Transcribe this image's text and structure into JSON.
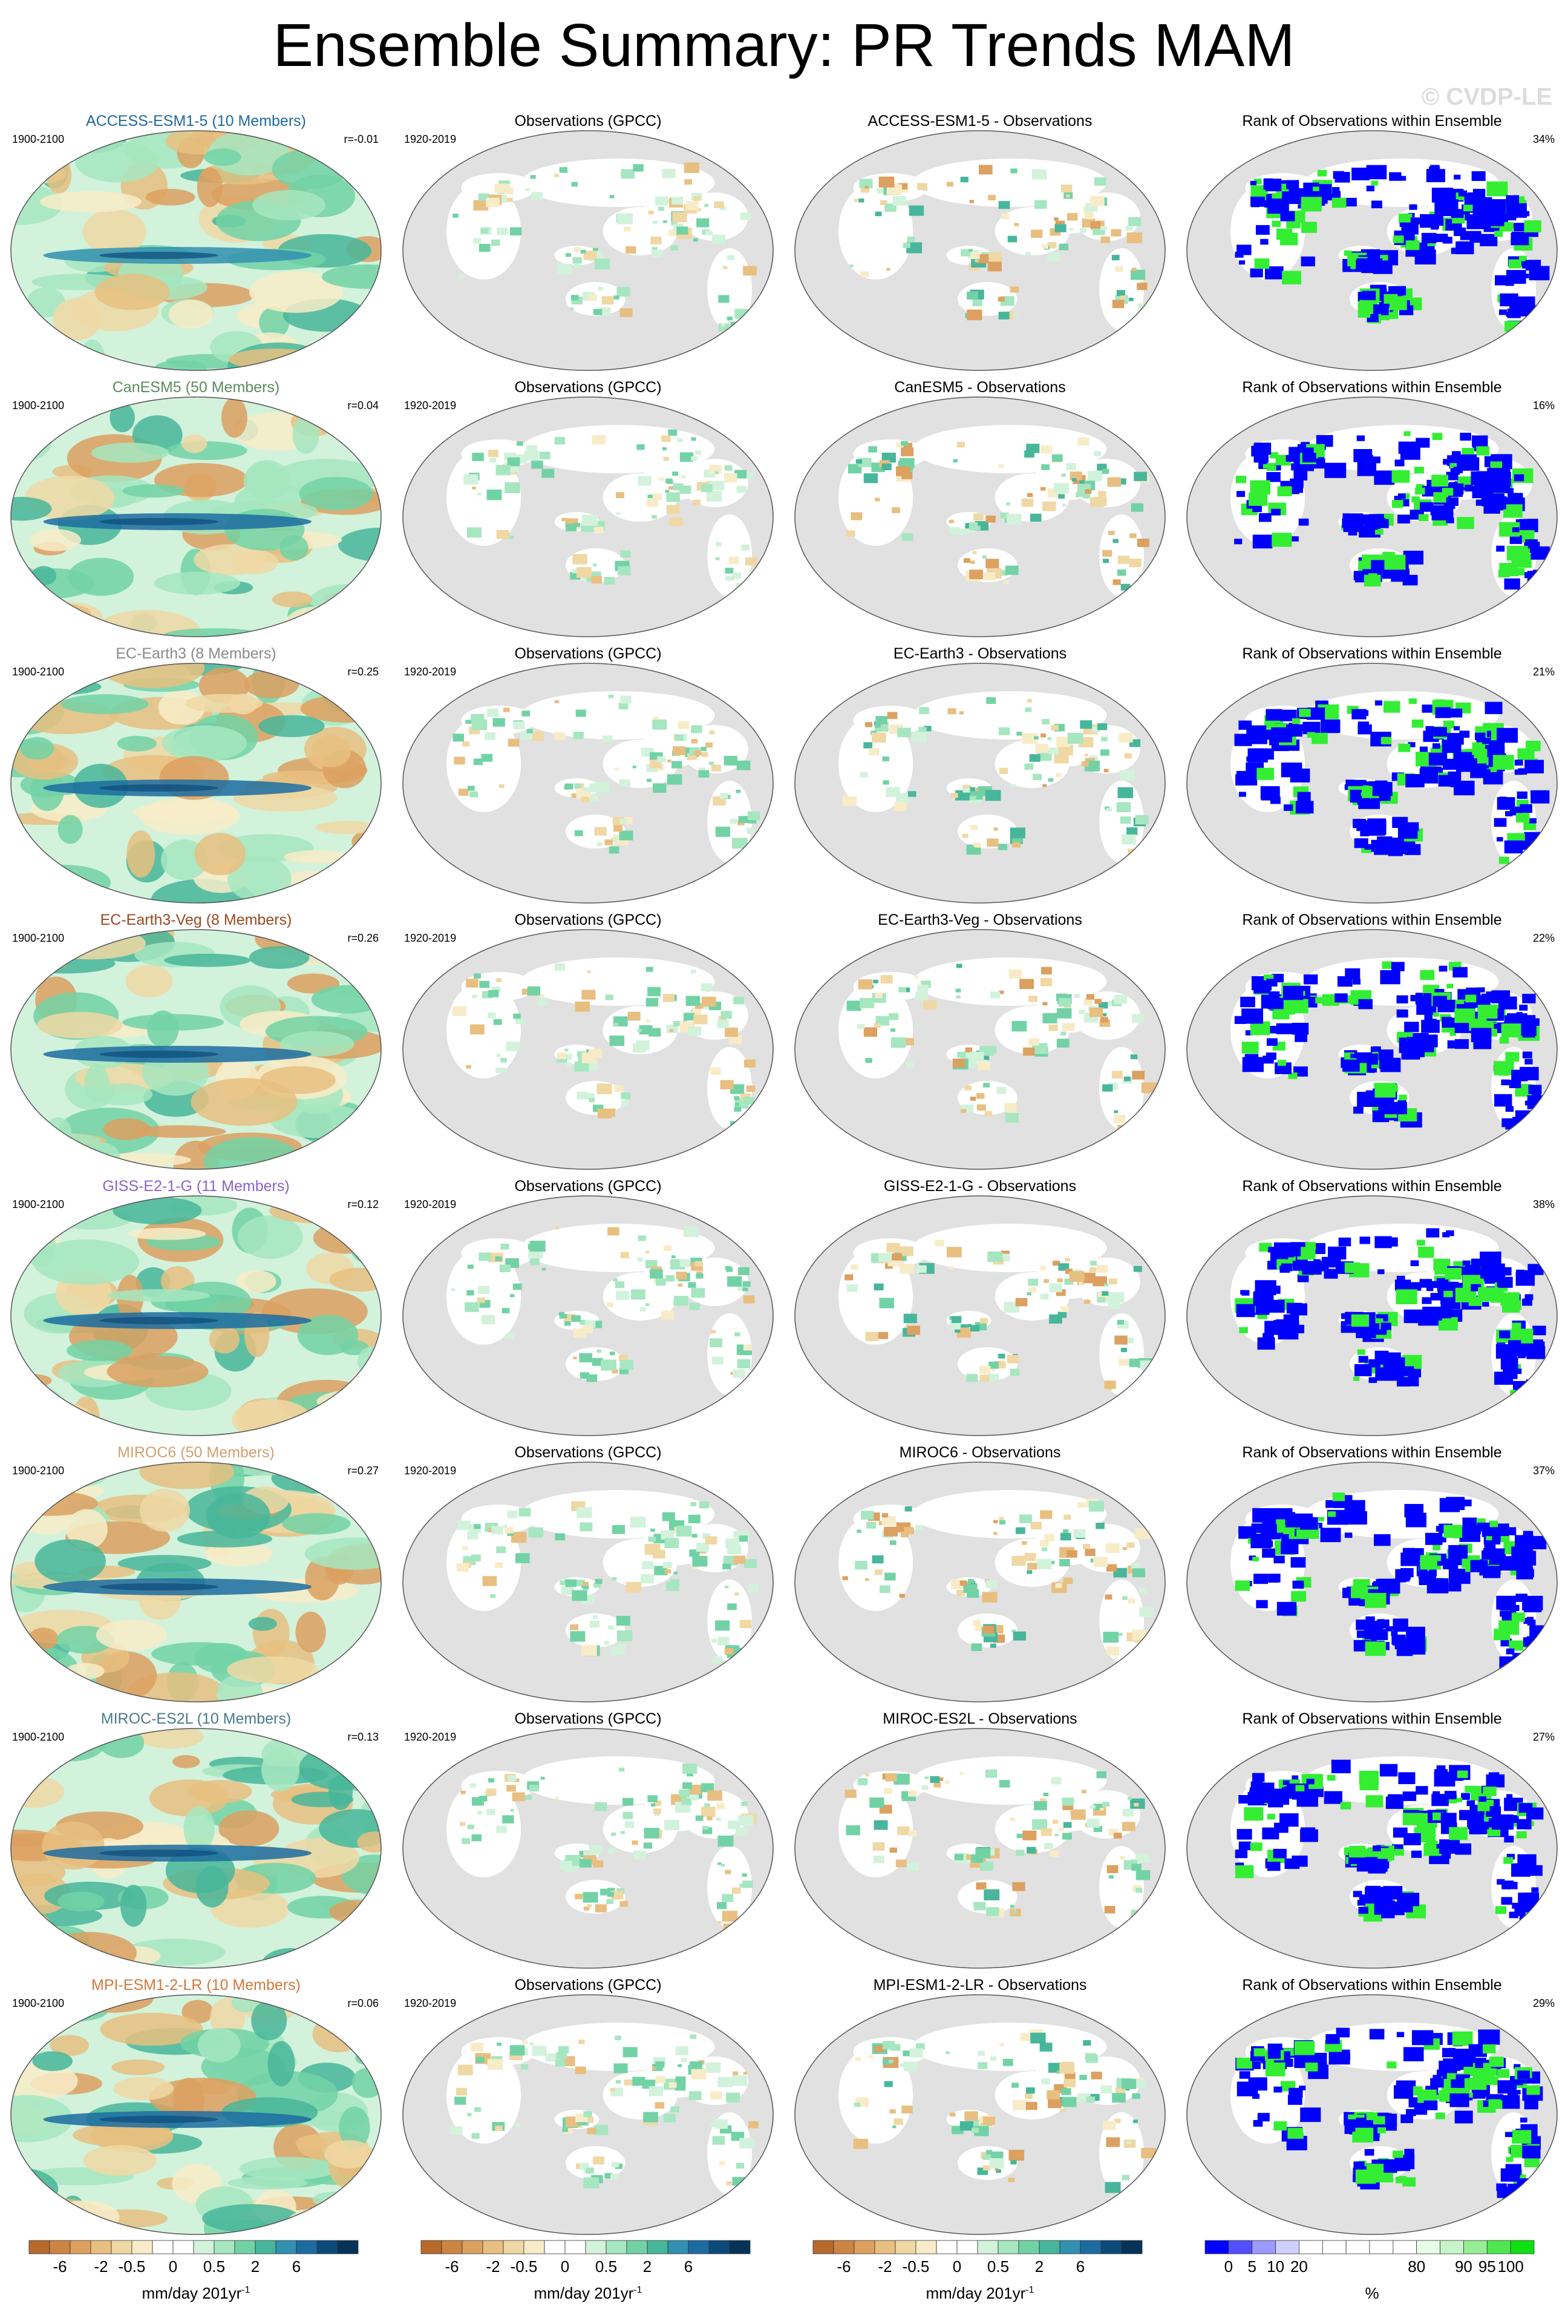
{
  "title": "Ensemble Summary: PR Trends MAM",
  "watermark": "© CVDP-LE",
  "colors": {
    "ocean_gray": "#e1e1e1",
    "land_white": "#ffffff",
    "rank_blue": "#0000ff",
    "rank_green": "#33ee33",
    "model_title_colors": {
      "ACCESS-ESM1-5": "#1f6a9e",
      "CanESM5": "#5d8c5d",
      "EC-Earth3": "#8a8a8a",
      "EC-Earth3-Veg": "#9a4a1e",
      "GISS-E2-1-G": "#8a64c8",
      "MIROC6": "#d4a070",
      "MIROC-ES2L": "#4a7a8a",
      "MPI-ESM1-2-LR": "#d2783c"
    }
  },
  "rows": [
    {
      "model": "ACCESS-ESM1-5",
      "model_title": "ACCESS-ESM1-5 (10 Members)",
      "model_period": "1900-2100",
      "r": "r=-0.01",
      "obs_title": "Observations (GPCC)",
      "obs_period": "1920-2019",
      "diff_title": "ACCESS-ESM1-5 - Observations",
      "rank_title": "Rank of Observations within Ensemble",
      "rank_pct": "34%"
    },
    {
      "model": "CanESM5",
      "model_title": "CanESM5 (50 Members)",
      "model_period": "1900-2100",
      "r": "r=0.04",
      "obs_title": "Observations (GPCC)",
      "obs_period": "1920-2019",
      "diff_title": "CanESM5 - Observations",
      "rank_title": "Rank of Observations within Ensemble",
      "rank_pct": "16%"
    },
    {
      "model": "EC-Earth3",
      "model_title": "EC-Earth3 (8 Members)",
      "model_period": "1900-2100",
      "r": "r=0.25",
      "obs_title": "Observations (GPCC)",
      "obs_period": "1920-2019",
      "diff_title": "EC-Earth3 - Observations",
      "rank_title": "Rank of Observations within Ensemble",
      "rank_pct": "21%"
    },
    {
      "model": "EC-Earth3-Veg",
      "model_title": "EC-Earth3-Veg (8 Members)",
      "model_period": "1900-2100",
      "r": "r=0.26",
      "obs_title": "Observations (GPCC)",
      "obs_period": "1920-2019",
      "diff_title": "EC-Earth3-Veg - Observations",
      "rank_title": "Rank of Observations within Ensemble",
      "rank_pct": "22%"
    },
    {
      "model": "GISS-E2-1-G",
      "model_title": "GISS-E2-1-G (11 Members)",
      "model_period": "1900-2100",
      "r": "r=0.12",
      "obs_title": "Observations (GPCC)",
      "obs_period": "1920-2019",
      "diff_title": "GISS-E2-1-G - Observations",
      "rank_title": "Rank of Observations within Ensemble",
      "rank_pct": "38%"
    },
    {
      "model": "MIROC6",
      "model_title": "MIROC6 (50 Members)",
      "model_period": "1900-2100",
      "r": "r=0.27",
      "obs_title": "Observations (GPCC)",
      "obs_period": "1920-2019",
      "diff_title": "MIROC6 - Observations",
      "rank_title": "Rank of Observations within Ensemble",
      "rank_pct": "37%"
    },
    {
      "model": "MIROC-ES2L",
      "model_title": "MIROC-ES2L (10 Members)",
      "model_period": "1900-2100",
      "r": "r=0.13",
      "obs_title": "Observations (GPCC)",
      "obs_period": "1920-2019",
      "diff_title": "MIROC-ES2L - Observations",
      "rank_title": "Rank of Observations within Ensemble",
      "rank_pct": "27%"
    },
    {
      "model": "MPI-ESM1-2-LR",
      "model_title": "MPI-ESM1-2-LR (10 Members)",
      "model_period": "1900-2100",
      "r": "r=0.06",
      "obs_title": "Observations (GPCC)",
      "obs_period": "1920-2019",
      "diff_title": "MPI-ESM1-2-LR - Observations",
      "rank_title": "Rank of Observations within Ensemble",
      "rank_pct": "29%"
    }
  ],
  "colorbars": {
    "trend": {
      "ticks": [
        "-6",
        "-2",
        "-0.5",
        "0",
        "0.5",
        "2",
        "6"
      ],
      "label_main": "mm/day 201yr",
      "label_sup": "-1",
      "colors": [
        "#b86a2c",
        "#cc8442",
        "#dca060",
        "#e8bf80",
        "#f0d8a4",
        "#f8ecc8",
        "#ffffff",
        "#ffffff",
        "#d2f2dc",
        "#a6e6c0",
        "#72d2a6",
        "#48b69a",
        "#3290b0",
        "#1c6ca0",
        "#0c4a7a",
        "#053358"
      ]
    },
    "rank": {
      "ticks": [
        "0",
        "5",
        "10",
        "20",
        "80",
        "90",
        "95",
        "100"
      ],
      "label_main": "%",
      "colors": [
        "#0000ff",
        "#5050ff",
        "#9a9aff",
        "#d0d0ff",
        "#ffffff",
        "#ffffff",
        "#ffffff",
        "#ffffff",
        "#ffffff",
        "#e6ffe6",
        "#c8f5c8",
        "#96ed96",
        "#50e650",
        "#10e010"
      ]
    }
  }
}
